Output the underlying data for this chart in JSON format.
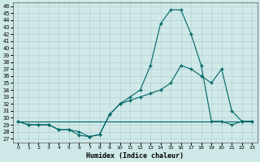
{
  "xlabel": "Humidex (Indice chaleur)",
  "bg_color": "#cfe8e8",
  "grid_color": "#b0cccc",
  "line_color": "#006666",
  "yticks": [
    27,
    28,
    29,
    30,
    31,
    32,
    33,
    34,
    35,
    36,
    37,
    38,
    39,
    40,
    41,
    42,
    43,
    44,
    45,
    46
  ],
  "xticks": [
    0,
    1,
    2,
    3,
    4,
    5,
    6,
    7,
    8,
    9,
    10,
    11,
    12,
    13,
    14,
    15,
    16,
    17,
    18,
    19,
    20,
    21,
    22,
    23
  ],
  "ylim": [
    26.5,
    46.5
  ],
  "xlim": [
    -0.5,
    23.5
  ],
  "line1_x": [
    0,
    1,
    2,
    3,
    4,
    5,
    6,
    7,
    8,
    9,
    10,
    11,
    12,
    13,
    14,
    15,
    16,
    17,
    18,
    19,
    20,
    21,
    22,
    23
  ],
  "line1_y": [
    29.5,
    29.0,
    29.0,
    29.0,
    28.3,
    28.3,
    27.5,
    27.3,
    27.6,
    30.5,
    32.0,
    33.0,
    34.0,
    37.5,
    43.5,
    45.5,
    45.5,
    42.0,
    37.5,
    29.5,
    29.5,
    29.0,
    29.5,
    29.5
  ],
  "line2_x": [
    0,
    1,
    2,
    3,
    4,
    5,
    6,
    7,
    8,
    9,
    10,
    11,
    12,
    13,
    14,
    15,
    16,
    17,
    18,
    19,
    20,
    21,
    22,
    23
  ],
  "line2_y": [
    29.5,
    29.0,
    29.0,
    29.0,
    28.3,
    28.3,
    28.0,
    27.3,
    27.6,
    30.5,
    32.0,
    32.5,
    33.0,
    33.5,
    34.0,
    35.0,
    37.5,
    37.0,
    36.0,
    35.0,
    37.0,
    31.0,
    29.5,
    29.5
  ],
  "line3_x": [
    0,
    23
  ],
  "line3_y": [
    29.5,
    29.5
  ]
}
